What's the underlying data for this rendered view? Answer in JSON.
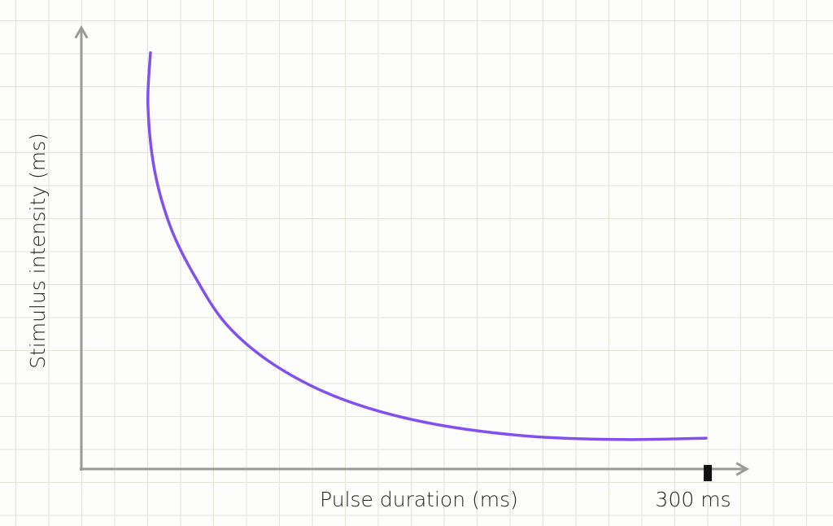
{
  "chart_data": {
    "type": "line",
    "x_label": "Pulse duration (ms)",
    "y_label": "Stimulus intensity (ms)",
    "xlim": [
      0,
      317.5
    ],
    "ylim": [
      0,
      100
    ],
    "xticks": [
      {
        "value": 300,
        "label": "300 ms"
      }
    ],
    "series": [
      {
        "color": "#8250f0",
        "x": [
          33.1,
          31.9,
          35.1,
          42.9,
          54.5,
          70.1,
          93.5,
          124.7,
          163.6,
          210.4,
          257.1,
          299.2
        ],
        "values": [
          94.5,
          82.4,
          67.7,
          54.7,
          43.6,
          32.5,
          23.3,
          15.9,
          10.7,
          7.6,
          6.7,
          7.0
        ]
      }
    ]
  }
}
